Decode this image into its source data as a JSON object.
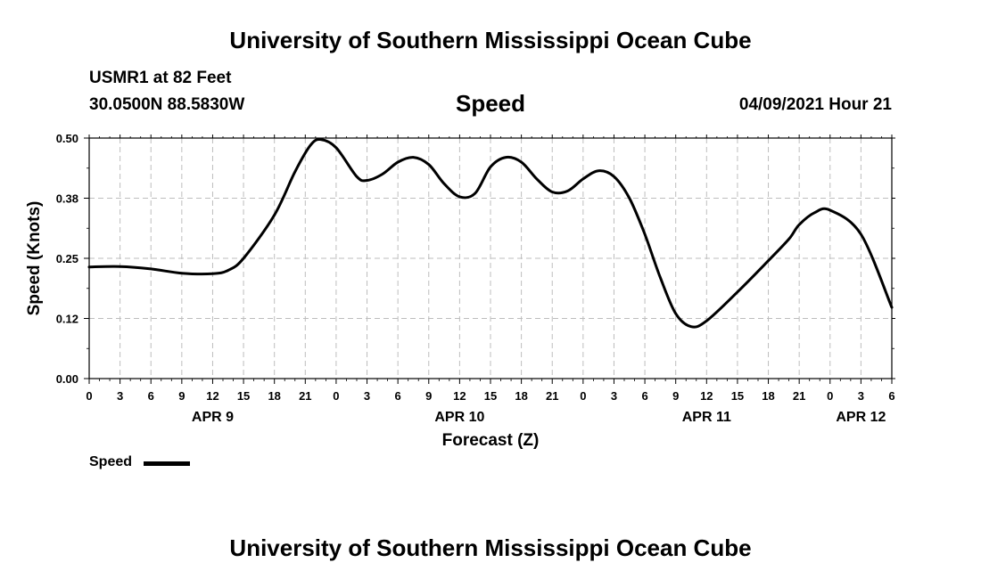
{
  "header": {
    "title": "University of Southern Mississippi Ocean Cube",
    "station": "USMR1 at 82 Feet",
    "coords": "30.0500N  88.5830W",
    "variable": "Speed",
    "timestamp": "04/09/2021 Hour 21"
  },
  "footer": {
    "title": "University of Southern Mississippi Ocean Cube"
  },
  "legend": {
    "label": "Speed",
    "color": "#000000"
  },
  "chart_data": {
    "type": "line",
    "xlabel": "Forecast (Z)",
    "ylabel": "Speed (Knots)",
    "x_unit": "hours from 2021-04-09 00Z",
    "xlim": [
      0,
      78
    ],
    "ylim": [
      0,
      0.5
    ],
    "yticks": [
      0.0,
      0.125,
      0.25,
      0.375,
      0.5
    ],
    "ytick_labels": [
      "0.00",
      "0.12",
      "0.25",
      "0.38",
      "0.50"
    ],
    "xticks": [
      0,
      3,
      6,
      9,
      12,
      15,
      18,
      21,
      24,
      27,
      30,
      33,
      36,
      39,
      42,
      45,
      48,
      51,
      54,
      57,
      60,
      63,
      66,
      69,
      72,
      75,
      78
    ],
    "xtick_labels": [
      "0",
      "3",
      "6",
      "9",
      "12",
      "15",
      "18",
      "21",
      "0",
      "3",
      "6",
      "9",
      "12",
      "15",
      "18",
      "21",
      "0",
      "3",
      "6",
      "9",
      "12",
      "15",
      "18",
      "21",
      "0",
      "3",
      "6"
    ],
    "date_labels": [
      {
        "label": "APR 9",
        "x": 12
      },
      {
        "label": "APR 10",
        "x": 36
      },
      {
        "label": "APR 11",
        "x": 60
      },
      {
        "label": "APR 12",
        "x": 75
      }
    ],
    "grid": true,
    "series": [
      {
        "name": "Speed",
        "color": "#000000",
        "x": [
          0,
          3,
          6,
          9,
          12,
          13.5,
          15,
          18,
          20,
          21.5,
          22.5,
          24,
          26,
          27,
          28.5,
          30,
          31.5,
          33,
          34.5,
          36,
          37.5,
          39,
          40.5,
          42,
          43.5,
          45,
          46.5,
          48,
          49.5,
          51,
          52.5,
          54,
          55.5,
          57,
          58.5,
          60,
          63,
          66,
          68,
          69,
          70.5,
          72,
          75,
          78
        ],
        "y": [
          0.232,
          0.233,
          0.228,
          0.219,
          0.218,
          0.225,
          0.25,
          0.34,
          0.43,
          0.485,
          0.497,
          0.48,
          0.42,
          0.412,
          0.425,
          0.45,
          0.46,
          0.445,
          0.405,
          0.378,
          0.385,
          0.44,
          0.46,
          0.45,
          0.415,
          0.388,
          0.39,
          0.415,
          0.432,
          0.42,
          0.375,
          0.3,
          0.21,
          0.135,
          0.108,
          0.12,
          0.18,
          0.245,
          0.29,
          0.32,
          0.345,
          0.35,
          0.3,
          0.148
        ]
      }
    ]
  }
}
